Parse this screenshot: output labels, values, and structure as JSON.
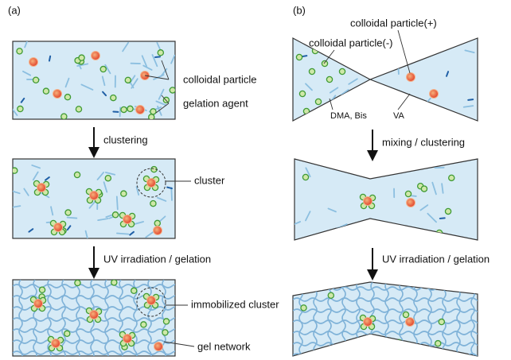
{
  "panels": [
    {
      "label": "(a)",
      "steps": [
        {
          "annotations": [
            "colloidal particle",
            "gelation agent"
          ]
        },
        {
          "arrow": "clustering",
          "annotations": [
            "cluster"
          ]
        },
        {
          "arrow": "UV irradiation / gelation",
          "annotations": [
            "immobilized cluster",
            "gel network"
          ]
        }
      ]
    },
    {
      "label": "(b)",
      "steps": [
        {
          "annotations": [
            "colloidal particle(+)",
            "colloidal particle(-)",
            "DMA, Bis",
            "VA"
          ]
        },
        {
          "arrow": "mixing / clustering"
        },
        {
          "arrow": "UV irradiation / gelation"
        }
      ]
    }
  ]
}
